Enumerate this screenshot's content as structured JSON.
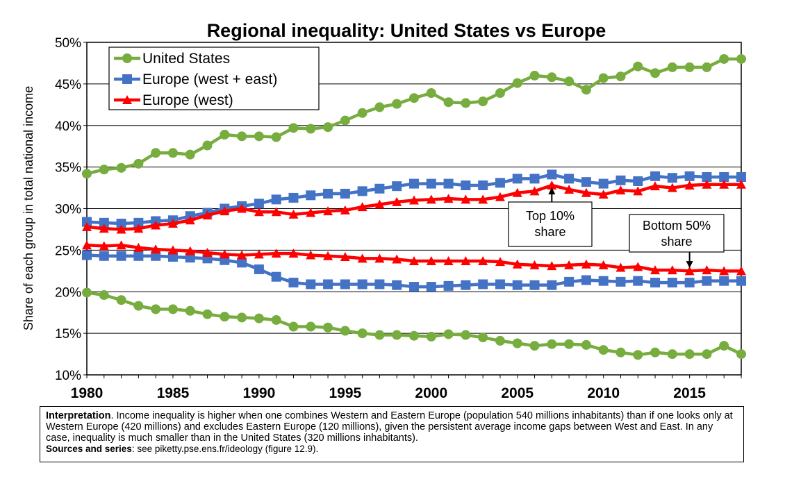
{
  "chart_data": {
    "type": "line",
    "title": "Regional inequality: United States vs Europe",
    "xlabel": "",
    "ylabel": "Share of each group in total national income",
    "xlim": [
      1980,
      2018
    ],
    "ylim": [
      10,
      50
    ],
    "x_ticks": [
      "1980",
      "1985",
      "1990",
      "1995",
      "2000",
      "2005",
      "2010",
      "2015"
    ],
    "y_ticks": [
      "10%",
      "15%",
      "20%",
      "25%",
      "30%",
      "35%",
      "40%",
      "45%",
      "50%"
    ],
    "grid": "horizontal",
    "legend_position": "top-left",
    "legend": [
      "United States",
      "Europe (west + east)",
      "Europe (west)"
    ],
    "colors": {
      "United States": "#77AC3E",
      "Europe (west + east)": "#4472C4",
      "Europe (west)": "#FF0000"
    },
    "x": [
      1980,
      1981,
      1982,
      1983,
      1984,
      1985,
      1986,
      1987,
      1988,
      1989,
      1990,
      1991,
      1992,
      1993,
      1994,
      1995,
      1996,
      1997,
      1998,
      1999,
      2000,
      2001,
      2002,
      2003,
      2004,
      2005,
      2006,
      2007,
      2008,
      2009,
      2010,
      2011,
      2012,
      2013,
      2014,
      2015,
      2016,
      2017,
      2018
    ],
    "series": [
      {
        "name": "United States",
        "group": "Top 10% share",
        "marker": "circle",
        "values": [
          34.2,
          34.7,
          34.9,
          35.4,
          36.7,
          36.7,
          36.5,
          37.6,
          38.9,
          38.7,
          38.7,
          38.6,
          39.7,
          39.6,
          39.8,
          40.6,
          41.5,
          42.2,
          42.6,
          43.3,
          43.9,
          42.8,
          42.7,
          42.9,
          43.9,
          45.1,
          46.0,
          45.8,
          45.3,
          44.3,
          45.7,
          45.9,
          47.1,
          46.3,
          47.0,
          47.0,
          47.0,
          48.0,
          48.0
        ]
      },
      {
        "name": "Europe (west + east)",
        "group": "Top 10% share",
        "marker": "square",
        "values": [
          28.4,
          28.3,
          28.2,
          28.3,
          28.5,
          28.6,
          29.1,
          29.5,
          30.0,
          30.3,
          30.6,
          31.1,
          31.3,
          31.6,
          31.8,
          31.8,
          32.1,
          32.4,
          32.7,
          33.0,
          33.0,
          33.0,
          32.8,
          32.8,
          33.1,
          33.6,
          33.6,
          34.1,
          33.6,
          33.2,
          33.0,
          33.4,
          33.3,
          33.9,
          33.7,
          33.9,
          33.8,
          33.8,
          33.8
        ]
      },
      {
        "name": "Europe (west)",
        "group": "Top 10% share",
        "marker": "triangle",
        "values": [
          27.8,
          27.6,
          27.5,
          27.6,
          28.0,
          28.2,
          28.6,
          29.2,
          29.7,
          30.0,
          29.6,
          29.6,
          29.3,
          29.5,
          29.7,
          29.8,
          30.2,
          30.5,
          30.8,
          31.0,
          31.1,
          31.2,
          31.1,
          31.1,
          31.4,
          31.9,
          32.1,
          32.8,
          32.3,
          31.9,
          31.7,
          32.2,
          32.1,
          32.7,
          32.5,
          32.8,
          32.9,
          32.9,
          32.9
        ]
      },
      {
        "name": "United States",
        "group": "Bottom 50% share",
        "marker": "circle",
        "values": [
          19.9,
          19.6,
          19.0,
          18.3,
          17.9,
          17.9,
          17.7,
          17.3,
          17.0,
          16.9,
          16.8,
          16.6,
          15.8,
          15.8,
          15.7,
          15.3,
          15.0,
          14.8,
          14.8,
          14.7,
          14.6,
          14.9,
          14.8,
          14.5,
          14.1,
          13.8,
          13.5,
          13.7,
          13.7,
          13.6,
          13.0,
          12.7,
          12.4,
          12.7,
          12.5,
          12.5,
          12.5,
          13.5,
          12.5
        ]
      },
      {
        "name": "Europe (west + east)",
        "group": "Bottom 50% share",
        "marker": "square",
        "values": [
          24.4,
          24.3,
          24.3,
          24.3,
          24.3,
          24.2,
          24.1,
          24.0,
          23.8,
          23.5,
          22.7,
          21.8,
          21.1,
          20.9,
          20.9,
          20.9,
          20.9,
          20.9,
          20.8,
          20.6,
          20.6,
          20.7,
          20.8,
          20.9,
          20.9,
          20.8,
          20.8,
          20.8,
          21.2,
          21.4,
          21.3,
          21.2,
          21.3,
          21.1,
          21.1,
          21.1,
          21.3,
          21.3,
          21.3
        ]
      },
      {
        "name": "Europe (west)",
        "group": "Bottom 50% share",
        "marker": "triangle",
        "values": [
          25.6,
          25.5,
          25.6,
          25.3,
          25.1,
          25.0,
          24.9,
          24.7,
          24.5,
          24.4,
          24.5,
          24.6,
          24.6,
          24.4,
          24.3,
          24.2,
          24.0,
          24.0,
          23.9,
          23.7,
          23.7,
          23.7,
          23.7,
          23.7,
          23.6,
          23.3,
          23.2,
          23.1,
          23.2,
          23.3,
          23.2,
          22.9,
          23.0,
          22.6,
          22.6,
          22.5,
          22.6,
          22.5,
          22.5
        ]
      }
    ],
    "annotations": [
      {
        "lines": [
          "Top 10%",
          "share"
        ],
        "arrow_to": {
          "x": 2007,
          "y": 32.8
        }
      },
      {
        "lines": [
          "Bottom 50%",
          "share"
        ],
        "arrow_to": {
          "x": 2015,
          "y": 22.6
        }
      }
    ]
  },
  "note": {
    "label": "Interpretation",
    "text": ". Income inequality is higher when one combines Western and Eastern Europe (population 540 millions inhabitants) than if one looks only at Western Europe (420 millions) and excludes Eastern Europe (120 millions), given the persistent average income gaps between West and East. In any case, inequality is much smaller than in the United States (320 millions inhabitants).",
    "sources_label": "Sources and series",
    "sources_text": ": see piketty.pse.ens.fr/ideology (figure 12.9)."
  }
}
